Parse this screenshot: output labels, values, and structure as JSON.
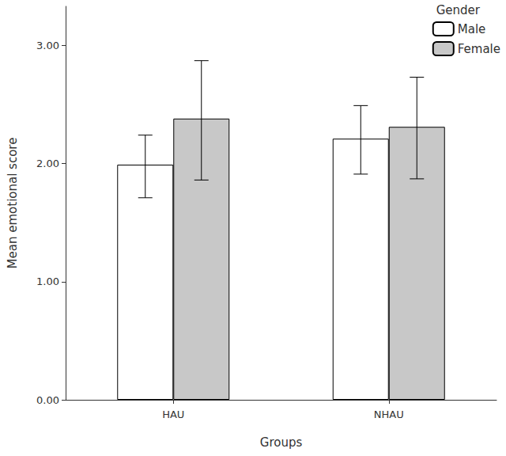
{
  "chart_data": {
    "type": "bar",
    "x_label": "Groups",
    "y_label": "Mean emotional score",
    "legend_title": "Gender",
    "categories": [
      "HAU",
      "NHAU"
    ],
    "series": [
      {
        "name": "Male",
        "color": "#ffffff",
        "values": [
          1.99,
          2.21
        ],
        "error_low": [
          1.71,
          1.91
        ],
        "error_high": [
          2.24,
          2.49
        ]
      },
      {
        "name": "Female",
        "color": "#c8c8c8",
        "values": [
          2.38,
          2.31
        ],
        "error_low": [
          1.86,
          1.87
        ],
        "error_high": [
          2.87,
          2.73
        ]
      }
    ],
    "ylim": [
      0,
      3.33
    ],
    "yticks": [
      {
        "value": 0,
        "label": "0.00"
      },
      {
        "value": 1,
        "label": "1.00"
      },
      {
        "value": 2,
        "label": "2.00"
      },
      {
        "value": 3,
        "label": "3.00"
      }
    ],
    "grid": false,
    "legend": "upper right"
  }
}
